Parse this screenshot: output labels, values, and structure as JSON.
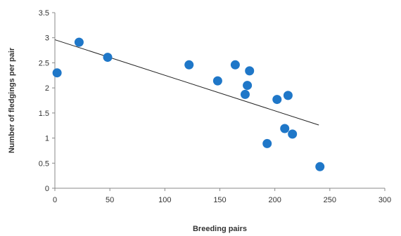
{
  "chart_data": {
    "type": "scatter",
    "title": "",
    "xlabel": "Breeding pairs",
    "ylabel": "Number of fledgings per pair",
    "xlim": [
      0,
      300
    ],
    "ylim": [
      0,
      3.5
    ],
    "x_ticks": [
      "0",
      "50",
      "100",
      "150",
      "200",
      "250",
      "300"
    ],
    "y_ticks": [
      "0",
      "0.5",
      "1",
      "1.5",
      "2",
      "2.5",
      "3",
      "3.5"
    ],
    "grid": false,
    "legend": "none",
    "marker_color": "#1f77c8",
    "trendline_color": "#222222",
    "series": [
      {
        "points": [
          {
            "x": 2,
            "y": 2.3
          },
          {
            "x": 22,
            "y": 2.91
          },
          {
            "x": 48,
            "y": 2.61
          },
          {
            "x": 122,
            "y": 2.46
          },
          {
            "x": 148,
            "y": 2.14
          },
          {
            "x": 164,
            "y": 2.46
          },
          {
            "x": 173,
            "y": 1.87
          },
          {
            "x": 175,
            "y": 2.05
          },
          {
            "x": 177,
            "y": 2.34
          },
          {
            "x": 193,
            "y": 0.89
          },
          {
            "x": 202,
            "y": 1.77
          },
          {
            "x": 209,
            "y": 1.19
          },
          {
            "x": 212,
            "y": 1.85
          },
          {
            "x": 216,
            "y": 1.08
          },
          {
            "x": 241,
            "y": 0.43
          }
        ]
      }
    ],
    "trendline": {
      "x": [
        0,
        240
      ],
      "y": [
        2.96,
        1.26
      ]
    }
  }
}
